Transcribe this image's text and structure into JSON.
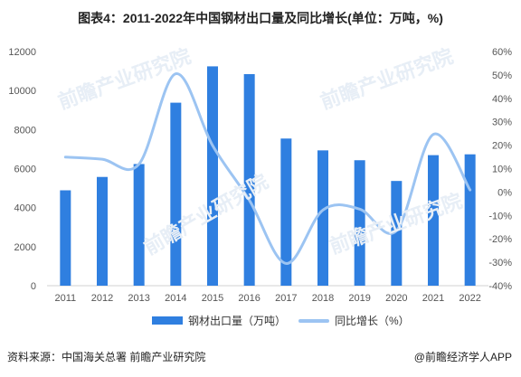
{
  "header": {
    "title": "图表4：2011-2022年中国钢材出口量及同比增长(单位：万吨，%)"
  },
  "footer": {
    "source": "资料来源：中国海关总署 前瞻产业研究院",
    "brand": "@前瞻经济学人APP"
  },
  "watermark": {
    "text": "前瞻产业研究院"
  },
  "colors": {
    "bar": "#2f7fe0",
    "line": "#9cc4f2",
    "grid": "#e6e6e6",
    "text": "#555555"
  },
  "chart_data": {
    "type": "bar",
    "categories": [
      "2011",
      "2012",
      "2013",
      "2014",
      "2015",
      "2016",
      "2017",
      "2018",
      "2019",
      "2020",
      "2021",
      "2022"
    ],
    "series": [
      {
        "name": "钢材出口量（万吨）",
        "type": "bar",
        "axis": "left",
        "values": [
          4888,
          5573,
          6234,
          9378,
          11240,
          10843,
          7541,
          6934,
          6429,
          5367,
          6690,
          6732
        ]
      },
      {
        "name": "同比增长（%）",
        "type": "line",
        "axis": "right",
        "values": [
          14.9,
          14.0,
          11.9,
          50.5,
          19.9,
          -3.5,
          -30.5,
          -7.7,
          -7.3,
          -16.5,
          24.6,
          0.9
        ]
      }
    ],
    "y_left": {
      "min": 0,
      "max": 12000,
      "ticks": [
        0,
        2000,
        4000,
        6000,
        8000,
        10000,
        12000
      ]
    },
    "y_right": {
      "min": -40,
      "max": 60,
      "ticks": [
        "-40%",
        "-30%",
        "-20%",
        "-10%",
        "0%",
        "10%",
        "20%",
        "30%",
        "40%",
        "50%",
        "60%"
      ]
    },
    "legend": [
      "钢材出口量（万吨）",
      "同比增长（%）"
    ],
    "legend_position": "bottom",
    "grid": false
  }
}
